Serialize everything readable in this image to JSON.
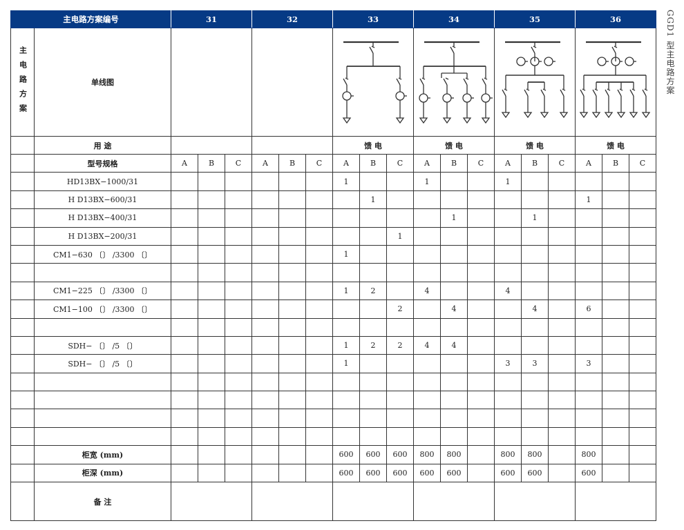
{
  "side_title": "GGD1 型主电路方案",
  "header": {
    "label": "主电路方案编号",
    "schemes": [
      "31",
      "32",
      "33",
      "34",
      "35",
      "36"
    ]
  },
  "section_label": "主电路方案",
  "diagram_label": "单线图",
  "diagrams": [
    {
      "scheme": "31",
      "type": "none"
    },
    {
      "scheme": "32",
      "type": "none"
    },
    {
      "scheme": "33",
      "type": "feeder-ct",
      "feeders": 2
    },
    {
      "scheme": "34",
      "type": "feeder-ct",
      "feeders": 4
    },
    {
      "scheme": "35",
      "type": "ct-top",
      "feeders": 4
    },
    {
      "scheme": "36",
      "type": "ct-top",
      "feeders": 6
    }
  ],
  "usage_label": "用  途",
  "usage": [
    "",
    "",
    "馈  电",
    "馈  电",
    "馈  电",
    "馈  电"
  ],
  "model_label": "型号规格",
  "subcols": [
    "A",
    "B",
    "C"
  ],
  "rows": [
    {
      "label": "HD13BX−1000/31",
      "values": [
        "",
        "",
        "",
        "",
        "",
        "",
        "1",
        "",
        "",
        "1",
        "",
        "",
        "1",
        "",
        "",
        "",
        "",
        ""
      ]
    },
    {
      "label": "H D13BX−600/31",
      "values": [
        "",
        "",
        "",
        "",
        "",
        "",
        "",
        "1",
        "",
        "",
        "",
        "",
        "",
        "",
        "",
        "1",
        "",
        ""
      ]
    },
    {
      "label": "H D13BX−400/31",
      "values": [
        "",
        "",
        "",
        "",
        "",
        "",
        "",
        "",
        "",
        "",
        "1",
        "",
        "",
        "1",
        "",
        "",
        "",
        ""
      ]
    },
    {
      "label": "H D13BX−200/31",
      "values": [
        "",
        "",
        "",
        "",
        "",
        "",
        "",
        "",
        "1",
        "",
        "",
        "",
        "",
        "",
        "",
        "",
        "",
        ""
      ]
    },
    {
      "label": "CM1−630 〔〕 /3300 〔〕",
      "values": [
        "",
        "",
        "",
        "",
        "",
        "",
        "1",
        "",
        "",
        "",
        "",
        "",
        "",
        "",
        "",
        "",
        "",
        ""
      ]
    },
    {
      "label": "",
      "values": [
        "",
        "",
        "",
        "",
        "",
        "",
        "",
        "",
        "",
        "",
        "",
        "",
        "",
        "",
        "",
        "",
        "",
        ""
      ]
    },
    {
      "label": "CM1−225 〔〕 /3300 〔〕",
      "values": [
        "",
        "",
        "",
        "",
        "",
        "",
        "1",
        "2",
        "",
        "4",
        "",
        "",
        "4",
        "",
        "",
        "",
        "",
        ""
      ]
    },
    {
      "label": "CM1−100 〔〕 /3300 〔〕",
      "values": [
        "",
        "",
        "",
        "",
        "",
        "",
        "",
        "",
        "2",
        "",
        "4",
        "",
        "",
        "4",
        "",
        "6",
        "",
        ""
      ]
    },
    {
      "label": "",
      "values": [
        "",
        "",
        "",
        "",
        "",
        "",
        "",
        "",
        "",
        "",
        "",
        "",
        "",
        "",
        "",
        "",
        "",
        ""
      ]
    },
    {
      "label": "SDH− 〔〕 /5 〔〕",
      "values": [
        "",
        "",
        "",
        "",
        "",
        "",
        "1",
        "2",
        "2",
        "4",
        "4",
        "",
        "",
        "",
        "",
        "",
        "",
        ""
      ]
    },
    {
      "label": "SDH− 〔〕 /5 〔〕",
      "values": [
        "",
        "",
        "",
        "",
        "",
        "",
        "1",
        "",
        "",
        "",
        "",
        "",
        "3",
        "3",
        "",
        "3",
        "",
        ""
      ]
    },
    {
      "label": "",
      "values": [
        "",
        "",
        "",
        "",
        "",
        "",
        "",
        "",
        "",
        "",
        "",
        "",
        "",
        "",
        "",
        "",
        "",
        ""
      ]
    },
    {
      "label": "",
      "values": [
        "",
        "",
        "",
        "",
        "",
        "",
        "",
        "",
        "",
        "",
        "",
        "",
        "",
        "",
        "",
        "",
        "",
        ""
      ]
    },
    {
      "label": "",
      "values": [
        "",
        "",
        "",
        "",
        "",
        "",
        "",
        "",
        "",
        "",
        "",
        "",
        "",
        "",
        "",
        "",
        "",
        ""
      ]
    },
    {
      "label": "",
      "values": [
        "",
        "",
        "",
        "",
        "",
        "",
        "",
        "",
        "",
        "",
        "",
        "",
        "",
        "",
        "",
        "",
        "",
        ""
      ]
    },
    {
      "label": "柜宽 (mm)",
      "bold": true,
      "values": [
        "",
        "",
        "",
        "",
        "",
        "",
        "600",
        "600",
        "600",
        "800",
        "800",
        "",
        "800",
        "800",
        "",
        "800",
        "",
        ""
      ]
    },
    {
      "label": "柜深 (mm)",
      "bold": true,
      "values": [
        "",
        "",
        "",
        "",
        "",
        "",
        "600",
        "600",
        "600",
        "600",
        "600",
        "",
        "600",
        "600",
        "",
        "600",
        "",
        ""
      ]
    }
  ],
  "remarks_label": "备  注"
}
